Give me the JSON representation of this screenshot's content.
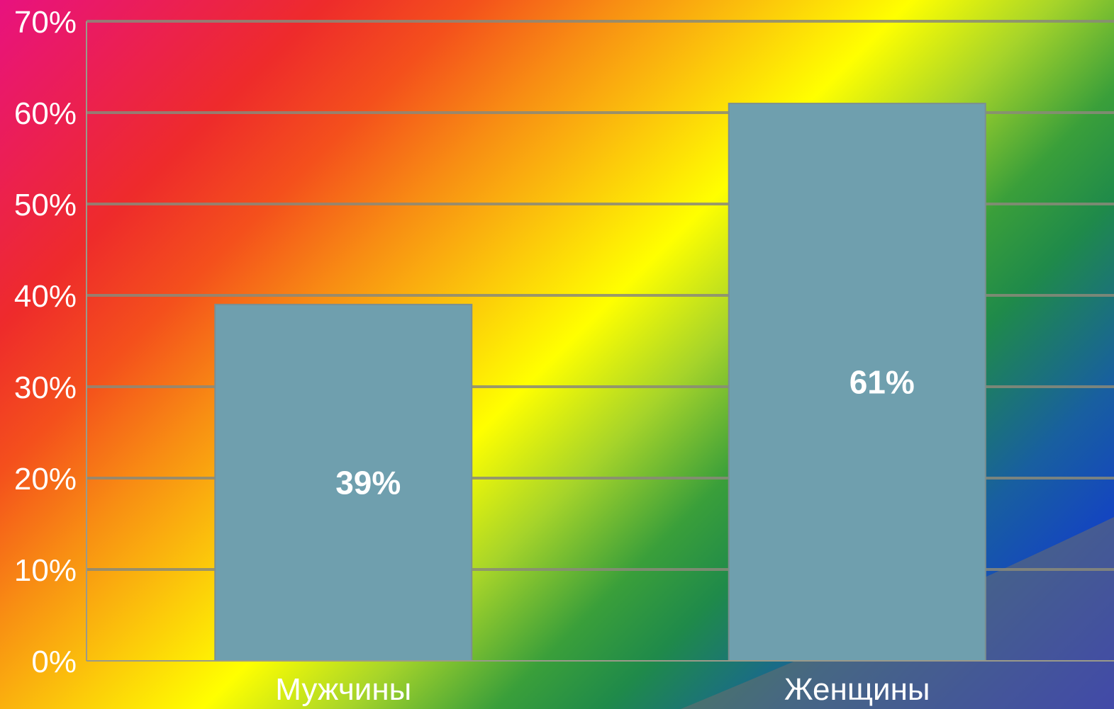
{
  "chart_data": {
    "type": "bar",
    "categories": [
      "Мужчины",
      "Женщины"
    ],
    "values": [
      39,
      61
    ],
    "data_labels": [
      "39%",
      "61%"
    ],
    "y_ticks": [
      "0%",
      "10%",
      "20%",
      "30%",
      "40%",
      "50%",
      "60%",
      "70%"
    ],
    "ylim": [
      0,
      70
    ],
    "grid": true,
    "bar_color": "#6f9fae",
    "grid_color": "#8a8a7a"
  }
}
